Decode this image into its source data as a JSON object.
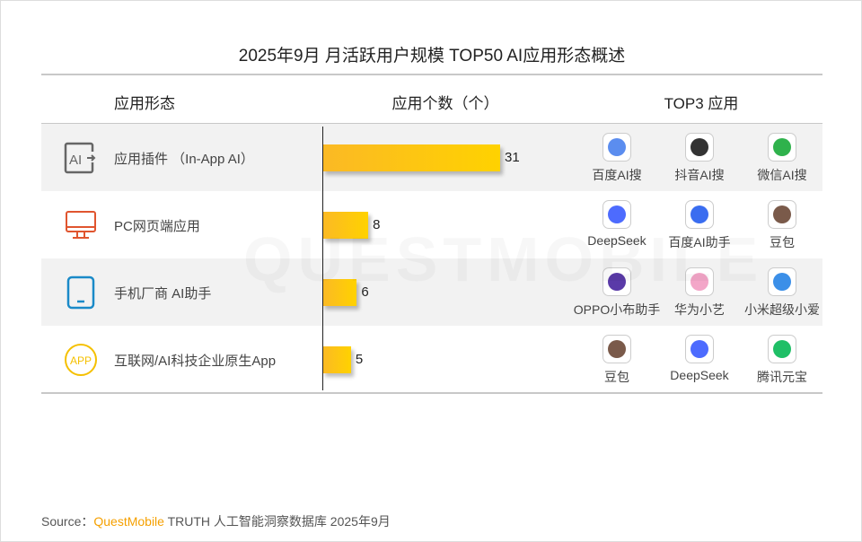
{
  "title": "2025年9月 月活跃用户规模 TOP50 AI应用形态概述",
  "headers": {
    "category": "应用形态",
    "count": "应用个数（个）",
    "top3": "TOP3 应用"
  },
  "chart_data": {
    "type": "bar",
    "orientation": "horizontal",
    "categories": [
      "应用插件 （In-App AI）",
      "PC网页端应用",
      "手机厂商 AI助手",
      "互联网/AI科技企业原生App"
    ],
    "values": [
      31,
      8,
      6,
      5
    ],
    "ylabel": "应用个数（个）",
    "bar_color": "#ffc61a"
  },
  "rows": [
    {
      "label": "应用插件 （In-App AI）",
      "icon": "ai-plugin-icon",
      "icon_color": "#666666",
      "value": "31",
      "top3": [
        "百度AI搜",
        "抖音AI搜",
        "微信AI搜"
      ]
    },
    {
      "label": "PC网页端应用",
      "icon": "monitor-icon",
      "icon_color": "#e0552f",
      "value": "8",
      "top3": [
        "DeepSeek",
        "百度AI助手",
        "豆包"
      ]
    },
    {
      "label": "手机厂商 AI助手",
      "icon": "phone-icon",
      "icon_color": "#1a8ac8",
      "value": "6",
      "top3": [
        "OPPO小布助手",
        "华为小艺",
        "小米超级小爱"
      ]
    },
    {
      "label": "互联网/AI科技企业原生App",
      "icon": "app-circle-icon",
      "icon_color": "#f5c000",
      "icon_text": "APP",
      "value": "5",
      "top3": [
        "豆包",
        "DeepSeek",
        "腾讯元宝"
      ]
    }
  ],
  "source": {
    "prefix": "Source：",
    "brand": "QuestMobile",
    "suffix": " TRUTH 人工智能洞察数据库 2025年9月"
  },
  "watermark": "QUESTMOBILE"
}
